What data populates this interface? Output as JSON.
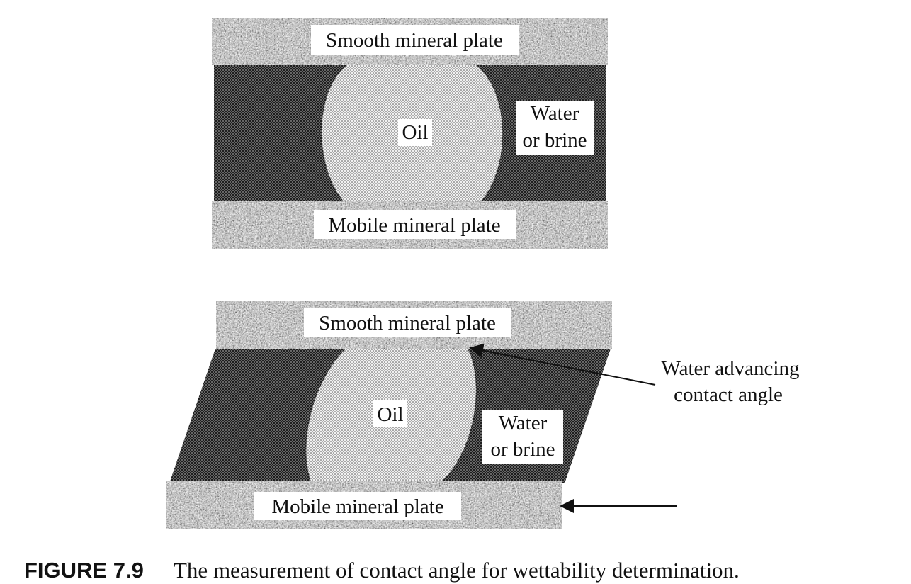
{
  "diagram_top": {
    "top_plate_label": "Smooth mineral plate",
    "oil_label": "Oil",
    "water_label_line1": "Water",
    "water_label_line2": "or brine",
    "bottom_plate_label": "Mobile mineral plate"
  },
  "diagram_bottom": {
    "top_plate_label": "Smooth mineral plate",
    "oil_label": "Oil",
    "water_label_line1": "Water",
    "water_label_line2": "or brine",
    "bottom_plate_label": "Mobile mineral plate",
    "annotation_line1": "Water advancing",
    "annotation_line2": "contact angle"
  },
  "caption": {
    "number": "FIGURE 7.9",
    "text": "The measurement of contact angle for wettability determination."
  }
}
